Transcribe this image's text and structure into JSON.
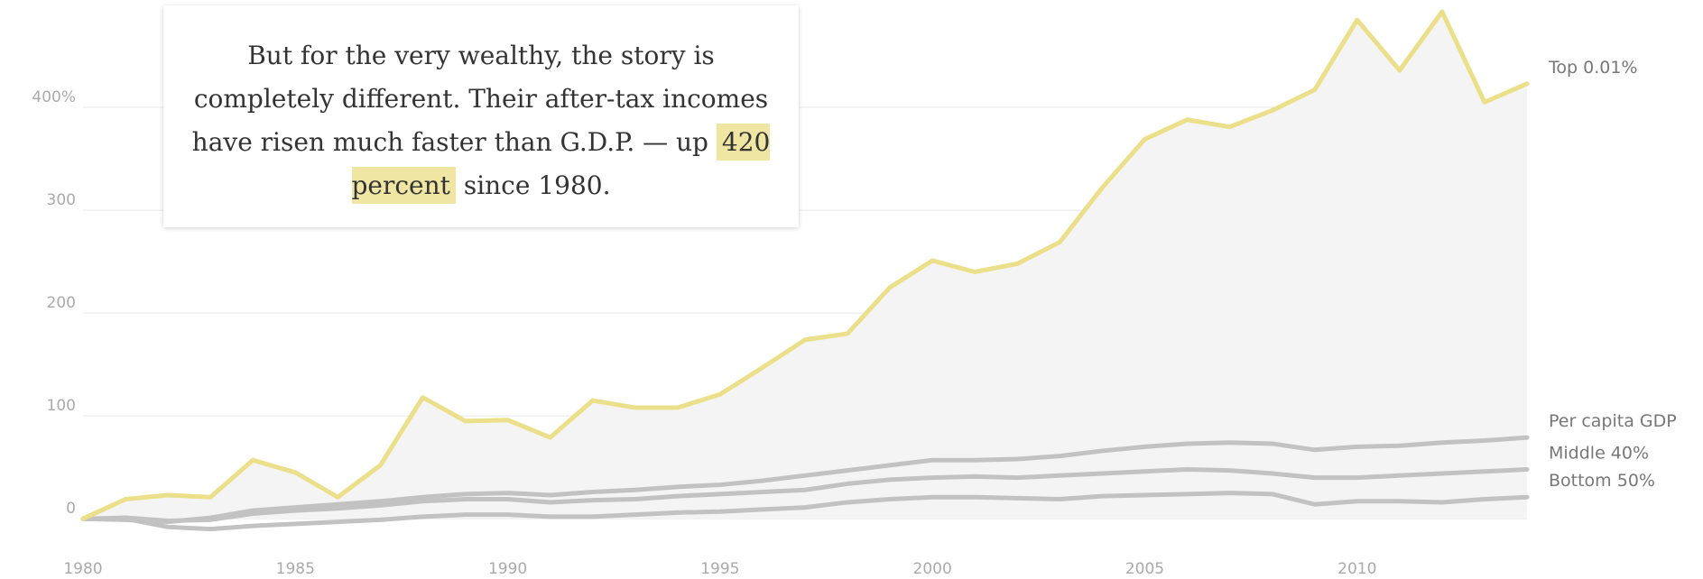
{
  "annotation": {
    "text_before": "But for the very wealthy, the story is completely different. Their after-tax incomes have risen much faster than G.D.P. — up",
    "highlight": "420 percent",
    "text_after": " since 1980."
  },
  "chart_data": {
    "type": "line",
    "x": [
      1980,
      1981,
      1982,
      1983,
      1984,
      1985,
      1986,
      1987,
      1988,
      1989,
      1990,
      1991,
      1992,
      1993,
      1994,
      1995,
      1996,
      1997,
      1998,
      1999,
      2000,
      2001,
      2002,
      2003,
      2004,
      2005,
      2006,
      2007,
      2008,
      2009,
      2010,
      2011,
      2012,
      2013,
      2014
    ],
    "xlim": [
      1980,
      2014
    ],
    "ylim": [
      -20,
      500
    ],
    "x_ticks": [
      1980,
      1985,
      1990,
      1995,
      2000,
      2005,
      2010
    ],
    "y_ticks": [
      {
        "value": 0,
        "label": "0"
      },
      {
        "value": 100,
        "label": "100"
      },
      {
        "value": 200,
        "label": "200"
      },
      {
        "value": 300,
        "label": "300"
      },
      {
        "value": 400,
        "label": "400%"
      }
    ],
    "grid": true,
    "highlight_area": "Top 0.01%",
    "series": [
      {
        "name": "Top 0.01%",
        "color": "#ebdf8a",
        "values": [
          0,
          19,
          23,
          21,
          57,
          45,
          21,
          52,
          118,
          95,
          96,
          79,
          115,
          108,
          108,
          121,
          147,
          174,
          180,
          225,
          251,
          240,
          248,
          269,
          322,
          369,
          388,
          381,
          397,
          417,
          485,
          436,
          493,
          405,
          423
        ]
      },
      {
        "name": "Per capita GDP",
        "color": "#c2c2c2",
        "values": [
          0,
          -1,
          -3,
          1,
          8,
          11,
          14,
          17,
          21,
          24,
          25,
          23,
          26,
          28,
          31,
          33,
          37,
          42,
          47,
          52,
          57,
          57,
          58,
          61,
          66,
          70,
          73,
          74,
          73,
          67,
          70,
          71,
          74,
          76,
          79
        ]
      },
      {
        "name": "Middle 40%",
        "color": "#c2c2c2",
        "values": [
          0,
          1,
          -2,
          -1,
          5,
          8,
          10,
          13,
          17,
          19,
          19,
          16,
          18,
          19,
          22,
          24,
          26,
          28,
          34,
          38,
          40,
          41,
          40,
          42,
          44,
          46,
          48,
          47,
          44,
          40,
          40,
          42,
          44,
          46,
          48
        ]
      },
      {
        "name": "Bottom 50%",
        "color": "#c2c2c2",
        "values": [
          0,
          0,
          -8,
          -10,
          -7,
          -5,
          -3,
          -1,
          2,
          4,
          4,
          2,
          2,
          4,
          6,
          7,
          9,
          11,
          16,
          19,
          21,
          21,
          20,
          19,
          22,
          23,
          24,
          25,
          24,
          14,
          17,
          17,
          16,
          19,
          21
        ]
      }
    ]
  }
}
